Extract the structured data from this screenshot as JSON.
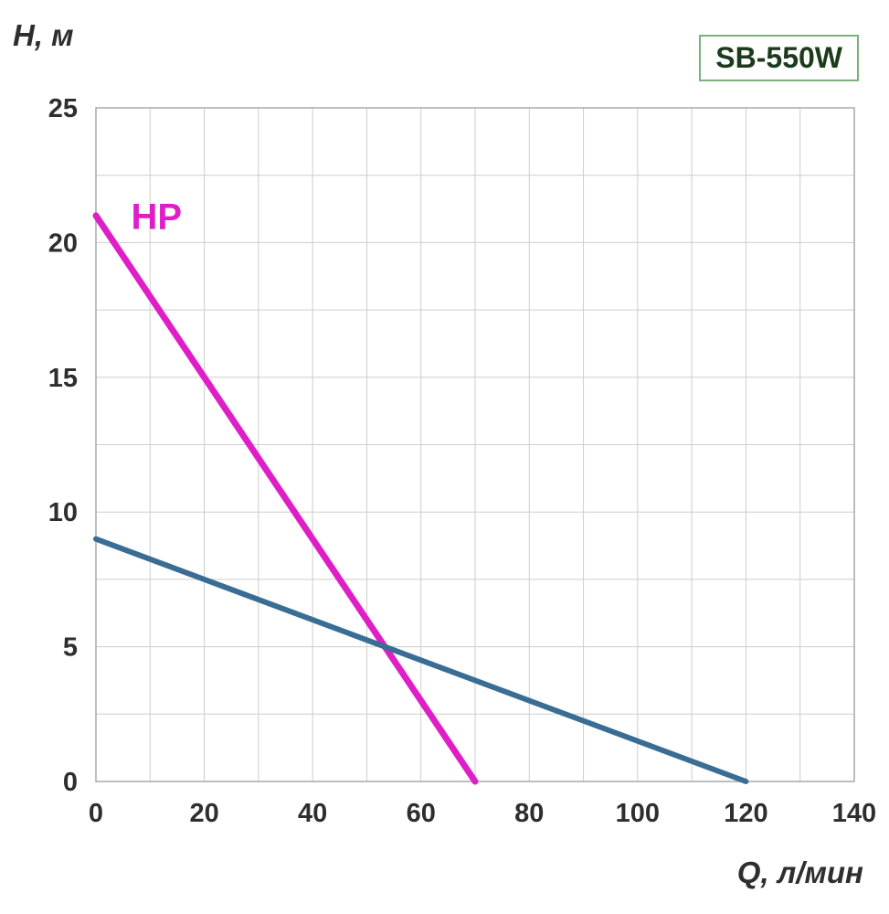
{
  "chart_data": {
    "type": "line",
    "title": "SB-550W",
    "xlabel": "Q, л/мин",
    "ylabel": "H, м",
    "xlim": [
      0,
      140
    ],
    "ylim": [
      0,
      25
    ],
    "x_ticks": [
      0,
      20,
      40,
      60,
      80,
      100,
      120,
      140
    ],
    "y_ticks": [
      0,
      5,
      10,
      15,
      20,
      25
    ],
    "x_grid_step": 10,
    "y_grid_step": 2.5,
    "grid": true,
    "legend_position": "inline-label",
    "grid_color": "#cdcdcd",
    "axis_color": "#a9a9a9",
    "tick_color": "#2e2e2e",
    "series": [
      {
        "name": "HP",
        "label": "HP",
        "label_at": [
          6.5,
          20.5
        ],
        "color": "#e01ec8",
        "width": 7,
        "points": [
          [
            0,
            21
          ],
          [
            70,
            0
          ]
        ]
      },
      {
        "name": "pump-head-curve",
        "label": "",
        "label_at": null,
        "color": "#3a6d94",
        "width": 6,
        "points": [
          [
            0,
            9
          ],
          [
            120,
            0
          ]
        ]
      }
    ],
    "badge": {
      "border_color": "#7bb07b",
      "text_color": "#1d3a1d"
    }
  }
}
